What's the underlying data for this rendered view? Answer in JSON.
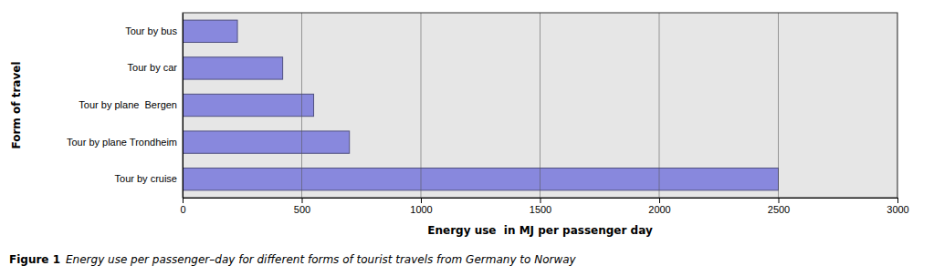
{
  "chart_data": {
    "type": "bar",
    "orientation": "horizontal",
    "categories": [
      "Tour by cruise",
      "Tour by plane Trondheim",
      "Tour by plane  Bergen",
      "Tour by car",
      "Tour by bus"
    ],
    "values": [
      2500,
      700,
      550,
      420,
      230
    ],
    "color": "#8888dd",
    "xlabel": "Energy use  in MJ per passenger day",
    "ylabel": "Form of travel",
    "xlim": [
      0,
      3000
    ],
    "xticks": [
      0,
      500,
      1000,
      1500,
      2000,
      2500,
      3000
    ],
    "grid": true,
    "caption_label": "Figure 1",
    "caption": "Energy use per passenger–day for different forms of tourist travels from Germany to Norway"
  }
}
